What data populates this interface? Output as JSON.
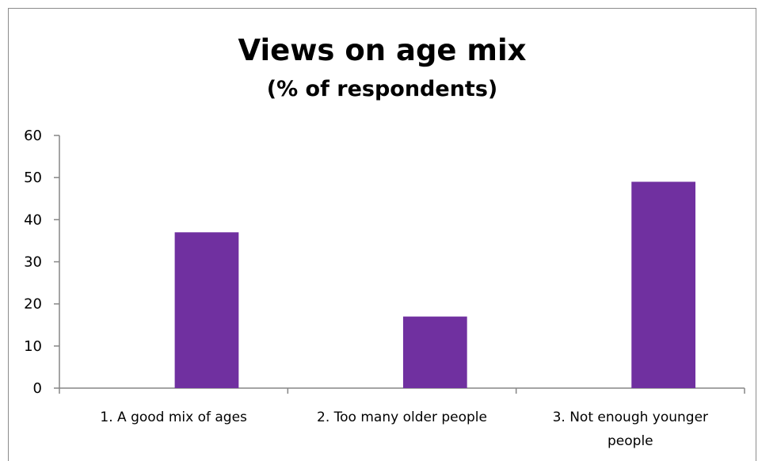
{
  "chart_data": {
    "type": "bar",
    "title": "Views on age mix",
    "subtitle": "(% of respondents)",
    "categories": [
      "1. A good mix of ages",
      "2. Too many older people",
      "3. Not enough younger people"
    ],
    "category_lines": [
      [
        "1. A good mix of ages"
      ],
      [
        "2. Too many older people"
      ],
      [
        "3. Not enough younger",
        "people"
      ]
    ],
    "values": [
      37,
      17,
      49
    ],
    "ylim": [
      0,
      60
    ],
    "yticks": [
      "0",
      "10",
      "20",
      "30",
      "40",
      "50",
      "60"
    ],
    "xlabel": "",
    "ylabel": "",
    "grid": false,
    "legend": "none",
    "bar_color": "#7030a0",
    "axis_color": "#868686"
  }
}
